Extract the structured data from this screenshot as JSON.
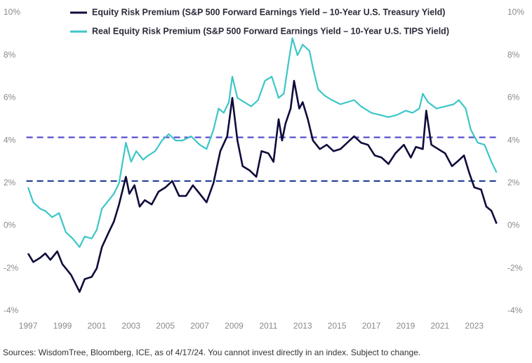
{
  "chart_data": {
    "type": "line",
    "series": [
      {
        "name": "Equity Risk Premium (S&P 500 Forward Earnings Yield – 10-Year U.S. Treasury Yield)",
        "color": "#0e0c3b",
        "x": [
          1997.0,
          1997.3,
          1997.7,
          1998.0,
          1998.3,
          1998.7,
          1999.0,
          1999.5,
          2000.0,
          2000.3,
          2000.7,
          2001.0,
          2001.3,
          2001.7,
          2002.0,
          2002.3,
          2002.7,
          2002.9,
          2003.2,
          2003.5,
          2003.8,
          2004.2,
          2004.6,
          2005.0,
          2005.4,
          2005.8,
          2006.2,
          2006.6,
          2007.0,
          2007.4,
          2007.8,
          2008.2,
          2008.6,
          2008.9,
          2009.2,
          2009.5,
          2009.9,
          2010.3,
          2010.6,
          2011.0,
          2011.3,
          2011.6,
          2011.8,
          2012.0,
          2012.3,
          2012.5,
          2012.8,
          2013.0,
          2013.3,
          2013.6,
          2014.0,
          2014.4,
          2014.8,
          2015.2,
          2015.6,
          2016.0,
          2016.4,
          2016.8,
          2017.2,
          2017.6,
          2018.0,
          2018.4,
          2018.9,
          2019.3,
          2019.6,
          2020.0,
          2020.2,
          2020.5,
          2020.9,
          2021.3,
          2021.7,
          2022.0,
          2022.4,
          2022.7,
          2023.0,
          2023.4,
          2023.7,
          2024.0,
          2024.3
        ],
        "values": [
          -1.3,
          -1.7,
          -1.5,
          -1.3,
          -1.6,
          -1.2,
          -1.8,
          -2.3,
          -3.1,
          -2.5,
          -2.4,
          -2.0,
          -1.0,
          -0.3,
          0.2,
          1.0,
          2.3,
          1.5,
          1.9,
          0.9,
          1.2,
          1.0,
          1.6,
          1.8,
          2.1,
          1.4,
          1.4,
          1.9,
          1.5,
          1.1,
          2.0,
          3.5,
          4.2,
          6.0,
          4.0,
          2.8,
          2.6,
          2.3,
          3.5,
          3.4,
          3.0,
          5.0,
          4.0,
          4.8,
          5.5,
          6.8,
          5.5,
          5.8,
          5.0,
          4.0,
          3.6,
          3.8,
          3.5,
          3.6,
          3.9,
          4.2,
          3.9,
          3.8,
          3.3,
          3.2,
          2.9,
          3.4,
          3.8,
          3.2,
          3.7,
          3.6,
          5.4,
          3.8,
          3.6,
          3.4,
          2.8,
          3.0,
          3.3,
          2.5,
          1.8,
          1.7,
          0.9,
          0.7,
          0.1
        ]
      },
      {
        "name": "Real Equity Risk Premium (S&P 500 Forward Earnings Yield – 10-Year U.S. TIPS Yield)",
        "color": "#3cc6c8",
        "x": [
          1997.0,
          1997.3,
          1997.7,
          1998.0,
          1998.4,
          1998.8,
          1999.2,
          1999.6,
          2000.0,
          2000.3,
          2000.7,
          2001.0,
          2001.3,
          2001.7,
          2002.0,
          2002.3,
          2002.7,
          2003.0,
          2003.3,
          2003.7,
          2004.0,
          2004.4,
          2004.8,
          2005.2,
          2005.6,
          2006.0,
          2006.5,
          2007.0,
          2007.4,
          2007.8,
          2008.1,
          2008.4,
          2008.7,
          2008.9,
          2009.2,
          2009.6,
          2010.0,
          2010.4,
          2010.8,
          2011.2,
          2011.6,
          2011.9,
          2012.2,
          2012.4,
          2012.7,
          2013.0,
          2013.4,
          2013.6,
          2013.9,
          2014.3,
          2014.7,
          2015.2,
          2015.6,
          2016.0,
          2016.4,
          2017.0,
          2017.5,
          2018.0,
          2018.5,
          2019.0,
          2019.4,
          2019.8,
          2020.0,
          2020.3,
          2020.8,
          2021.3,
          2021.8,
          2022.1,
          2022.5,
          2022.8,
          2023.2,
          2023.6,
          2024.0,
          2024.3
        ],
        "values": [
          1.8,
          1.1,
          0.8,
          0.7,
          0.4,
          0.6,
          -0.3,
          -0.6,
          -1.0,
          -0.5,
          -0.6,
          -0.2,
          0.8,
          1.2,
          1.5,
          2.0,
          3.9,
          3.0,
          3.5,
          3.1,
          3.3,
          3.5,
          4.0,
          4.3,
          4.0,
          4.0,
          4.2,
          3.8,
          3.6,
          4.5,
          5.5,
          5.3,
          5.8,
          7.0,
          6.0,
          5.8,
          5.6,
          5.9,
          6.8,
          7.0,
          6.0,
          6.2,
          7.8,
          8.8,
          8.0,
          8.5,
          8.2,
          7.4,
          6.4,
          6.1,
          5.9,
          5.7,
          5.8,
          5.9,
          5.6,
          5.3,
          5.2,
          5.1,
          5.2,
          5.4,
          5.3,
          5.5,
          6.2,
          5.8,
          5.5,
          5.6,
          5.7,
          5.9,
          5.5,
          4.5,
          3.9,
          3.8,
          3.0,
          2.5
        ]
      }
    ],
    "reference_lines": [
      {
        "value": 4.15,
        "color": "#5a4fcf"
      },
      {
        "value": 2.1,
        "color": "#1f3a93"
      }
    ],
    "xlim": [
      1996.9,
      2024.4
    ],
    "xticks": [
      1997,
      1999,
      2001,
      2003,
      2005,
      2007,
      2009,
      2011,
      2013,
      2015,
      2017,
      2019,
      2021,
      2023
    ],
    "ylim": [
      -4,
      10
    ],
    "yticks": [
      {
        "value": -4,
        "label": "-4%"
      },
      {
        "value": -2,
        "label": "-2%"
      },
      {
        "value": 0,
        "label": "0%"
      },
      {
        "value": 2,
        "label": "2%"
      },
      {
        "value": 4,
        "label": "4%"
      },
      {
        "value": 6,
        "label": "6%"
      },
      {
        "value": 8,
        "label": "8%"
      },
      {
        "value": 10,
        "label": "10%"
      }
    ],
    "y2lim": [
      -4,
      10
    ],
    "y2ticks": [
      {
        "value": -4,
        "label": "-4%"
      },
      {
        "value": -2,
        "label": "-2%"
      },
      {
        "value": 0,
        "label": "0%"
      },
      {
        "value": 2,
        "label": "2%"
      },
      {
        "value": 4,
        "label": "4%"
      },
      {
        "value": 6,
        "label": "6%"
      },
      {
        "value": 8,
        "label": "8%"
      },
      {
        "value": 10,
        "label": "10%"
      }
    ],
    "source": "Sources: WisdomTree, Bloomberg, ICE, as of 4/17/24. You cannot invest directly in an index. Subject to change."
  }
}
